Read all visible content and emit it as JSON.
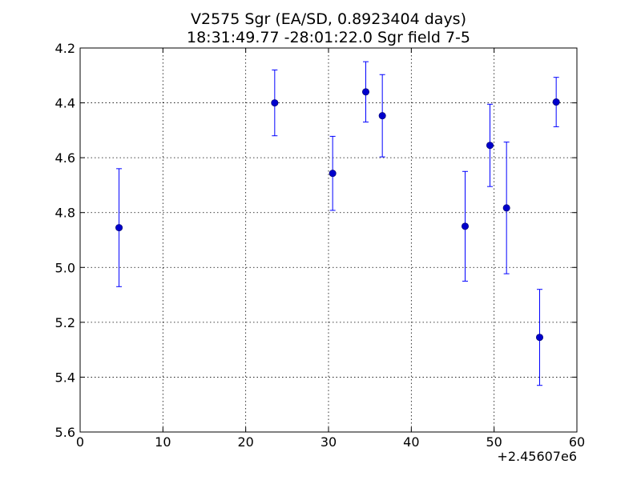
{
  "chart_data": {
    "type": "scatter",
    "title": "V2575 Sgr (EA/SD, 0.8923404 days)",
    "subtitle": "18:31:49.77 -28:01:22.0 Sgr field 7-5",
    "xlabel": "",
    "ylabel": "",
    "x_offset_label": "+2.45607e6",
    "xlim": [
      0,
      60
    ],
    "ylim": [
      5.6,
      4.2
    ],
    "y_inverted": true,
    "x_ticks": [
      0,
      10,
      20,
      30,
      40,
      50,
      60
    ],
    "y_ticks": [
      4.2,
      4.4,
      4.6,
      4.8,
      5.0,
      5.2,
      5.4,
      5.6
    ],
    "x_tick_labels": [
      "0",
      "10",
      "20",
      "30",
      "40",
      "50",
      "60"
    ],
    "y_tick_labels": [
      "4.2",
      "4.4",
      "4.6",
      "4.8",
      "5.0",
      "5.2",
      "5.4",
      "5.6"
    ],
    "grid": true,
    "marker_color": "#0000cc",
    "errorbar_color": "#0000ff",
    "series": [
      {
        "x": [
          4.7,
          23.5,
          30.5,
          34.5,
          36.5,
          46.5,
          49.5,
          51.5,
          55.5,
          57.5
        ],
        "y": [
          4.855,
          4.4,
          4.657,
          4.36,
          4.447,
          4.85,
          4.555,
          4.783,
          5.255,
          4.397
        ],
        "yerr": [
          0.215,
          0.12,
          0.135,
          0.11,
          0.15,
          0.2,
          0.15,
          0.24,
          0.175,
          0.09
        ]
      }
    ]
  }
}
